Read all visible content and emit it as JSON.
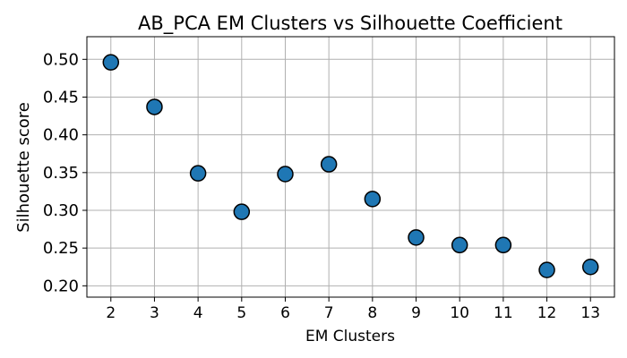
{
  "chart_data": {
    "type": "scatter",
    "title": "AB_PCA EM Clusters vs Silhouette Coefficient",
    "xlabel": "EM Clusters",
    "ylabel": "Silhouette score",
    "x": [
      2,
      3,
      4,
      5,
      6,
      7,
      8,
      9,
      10,
      11,
      12,
      13
    ],
    "y": [
      0.496,
      0.437,
      0.349,
      0.298,
      0.348,
      0.361,
      0.315,
      0.264,
      0.254,
      0.254,
      0.221,
      0.225
    ],
    "x_ticks": [
      2,
      3,
      4,
      5,
      6,
      7,
      8,
      9,
      10,
      11,
      12,
      13
    ],
    "y_ticks": [
      "0.20",
      "0.25",
      "0.30",
      "0.35",
      "0.40",
      "0.45",
      "0.50"
    ],
    "xlim": [
      1.45,
      13.55
    ],
    "ylim": [
      0.185,
      0.53
    ],
    "grid": true,
    "colors": {
      "marker_fill": "#1f77b4",
      "marker_edge": "#000000",
      "grid": "#b0b0b0",
      "axis": "#000000"
    }
  }
}
